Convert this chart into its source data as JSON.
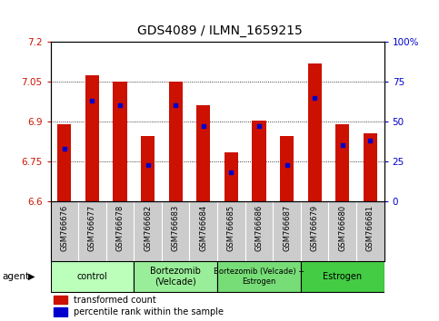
{
  "title": "GDS4089 / ILMN_1659215",
  "samples": [
    "GSM766676",
    "GSM766677",
    "GSM766678",
    "GSM766682",
    "GSM766683",
    "GSM766684",
    "GSM766685",
    "GSM766686",
    "GSM766687",
    "GSM766679",
    "GSM766680",
    "GSM766681"
  ],
  "red_values": [
    6.89,
    7.075,
    7.05,
    6.845,
    7.05,
    6.96,
    6.785,
    6.905,
    6.845,
    7.12,
    6.89,
    6.855
  ],
  "blue_values": [
    0.33,
    0.63,
    0.6,
    0.23,
    0.6,
    0.47,
    0.18,
    0.47,
    0.23,
    0.65,
    0.35,
    0.38
  ],
  "ymin": 6.6,
  "ymax": 7.2,
  "y_ticks_left": [
    6.6,
    6.75,
    6.9,
    7.05,
    7.2
  ],
  "y_ticks_right_labels": [
    "0",
    "25",
    "50",
    "75",
    "100%"
  ],
  "groups": [
    {
      "label": "control",
      "start": 0,
      "end": 3,
      "color": "#bbffbb"
    },
    {
      "label": "Bortezomib\n(Velcade)",
      "start": 3,
      "end": 6,
      "color": "#99ee99"
    },
    {
      "label": "Bortezomib (Velcade) +\nEstrogen",
      "start": 6,
      "end": 9,
      "color": "#77dd77"
    },
    {
      "label": "Estrogen",
      "start": 9,
      "end": 12,
      "color": "#44cc44"
    }
  ],
  "bar_color": "#cc1100",
  "dot_color": "#0000cc",
  "bar_width": 0.5,
  "legend_red": "transformed count",
  "legend_blue": "percentile rank within the sample",
  "left_label_color": "#cc1100",
  "right_label_color": "#0000cc",
  "xtick_bg": "#cccccc",
  "title_fontsize": 10
}
